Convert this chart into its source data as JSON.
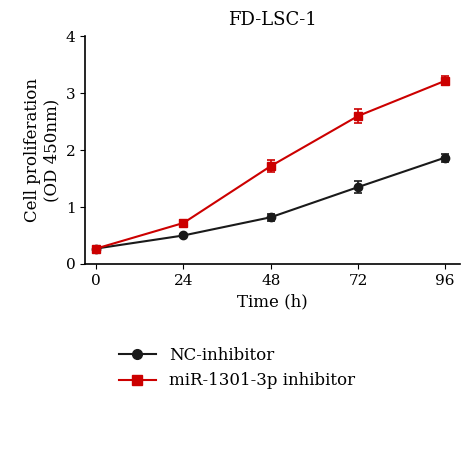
{
  "title": "FD-LSC-1",
  "xlabel": "Time (h)",
  "ylabel": "Cell proliferation\n(OD 450nm)",
  "x": [
    0,
    24,
    48,
    72,
    96
  ],
  "nc_y": [
    0.27,
    0.5,
    0.82,
    1.35,
    1.87
  ],
  "nc_yerr": [
    0.02,
    0.03,
    0.06,
    0.1,
    0.07
  ],
  "mir_y": [
    0.27,
    0.72,
    1.72,
    2.6,
    3.22
  ],
  "mir_yerr": [
    0.02,
    0.05,
    0.1,
    0.12,
    0.08
  ],
  "nc_color": "#1a1a1a",
  "mir_color": "#cc0000",
  "ylim": [
    0,
    4
  ],
  "xlim": [
    -3,
    100
  ],
  "yticks": [
    0,
    1,
    2,
    3,
    4
  ],
  "xticks": [
    0,
    24,
    48,
    72,
    96
  ],
  "legend_nc": "NC-inhibitor",
  "legend_mir": "miR-1301-3p inhibitor",
  "background_color": "#ffffff",
  "title_fontsize": 13,
  "label_fontsize": 12,
  "tick_fontsize": 11,
  "legend_fontsize": 12
}
